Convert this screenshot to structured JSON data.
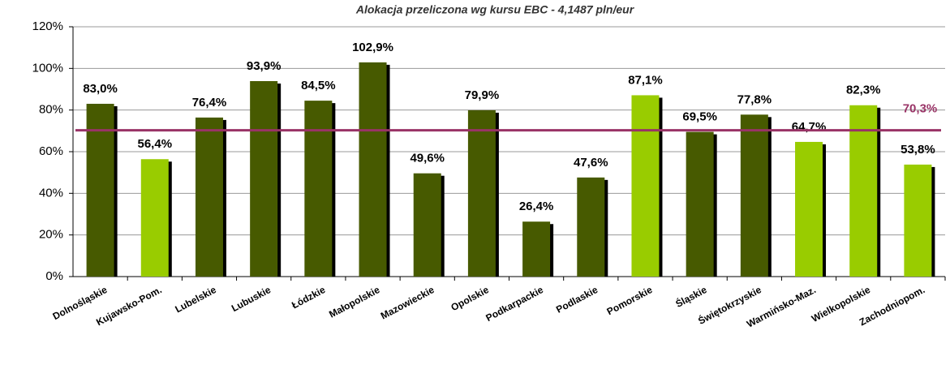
{
  "chart_data": {
    "type": "bar",
    "title": "Alokacja przeliczona wg kursu EBC - 4,1487 pln/eur",
    "categories": [
      "Dolnośląskie",
      "Kujawsko-Pom.",
      "Lubelskie",
      "Lubuskie",
      "Łódzkie",
      "Małopolskie",
      "Mazowieckie",
      "Opolskie",
      "Podkarpackie",
      "Podlaskie",
      "Pomorskie",
      "Śląskie",
      "Świętokrzyskie",
      "Warmińsko-Maz.",
      "Wielkopolskie",
      "Zachodniopom."
    ],
    "values": [
      83.0,
      56.4,
      76.4,
      93.9,
      84.5,
      102.9,
      49.6,
      79.9,
      26.4,
      47.6,
      87.1,
      69.5,
      77.8,
      64.7,
      82.3,
      53.8
    ],
    "value_labels": [
      "83,0%",
      "56,4%",
      "76,4%",
      "93,9%",
      "84,5%",
      "102,9%",
      "49,6%",
      "79,9%",
      "26,4%",
      "47,6%",
      "87,1%",
      "69,5%",
      "77,8%",
      "64,7%",
      "82,3%",
      "53,8%"
    ],
    "colors": [
      "#475a00",
      "#99cc00",
      "#475a00",
      "#475a00",
      "#475a00",
      "#475a00",
      "#475a00",
      "#475a00",
      "#475a00",
      "#475a00",
      "#99cc00",
      "#475a00",
      "#475a00",
      "#99cc00",
      "#99cc00",
      "#99cc00"
    ],
    "ylim": [
      0,
      120
    ],
    "yticks": [
      {
        "value": 0,
        "label": "0%"
      },
      {
        "value": 20,
        "label": "20%"
      },
      {
        "value": 40,
        "label": "40%"
      },
      {
        "value": 60,
        "label": "60%"
      },
      {
        "value": 80,
        "label": "80%"
      },
      {
        "value": 100,
        "label": "100%"
      },
      {
        "value": 120,
        "label": "120%"
      }
    ],
    "grid": true,
    "reference_line": {
      "value": 70.3,
      "label": "70,3%",
      "color": "#993366"
    }
  }
}
